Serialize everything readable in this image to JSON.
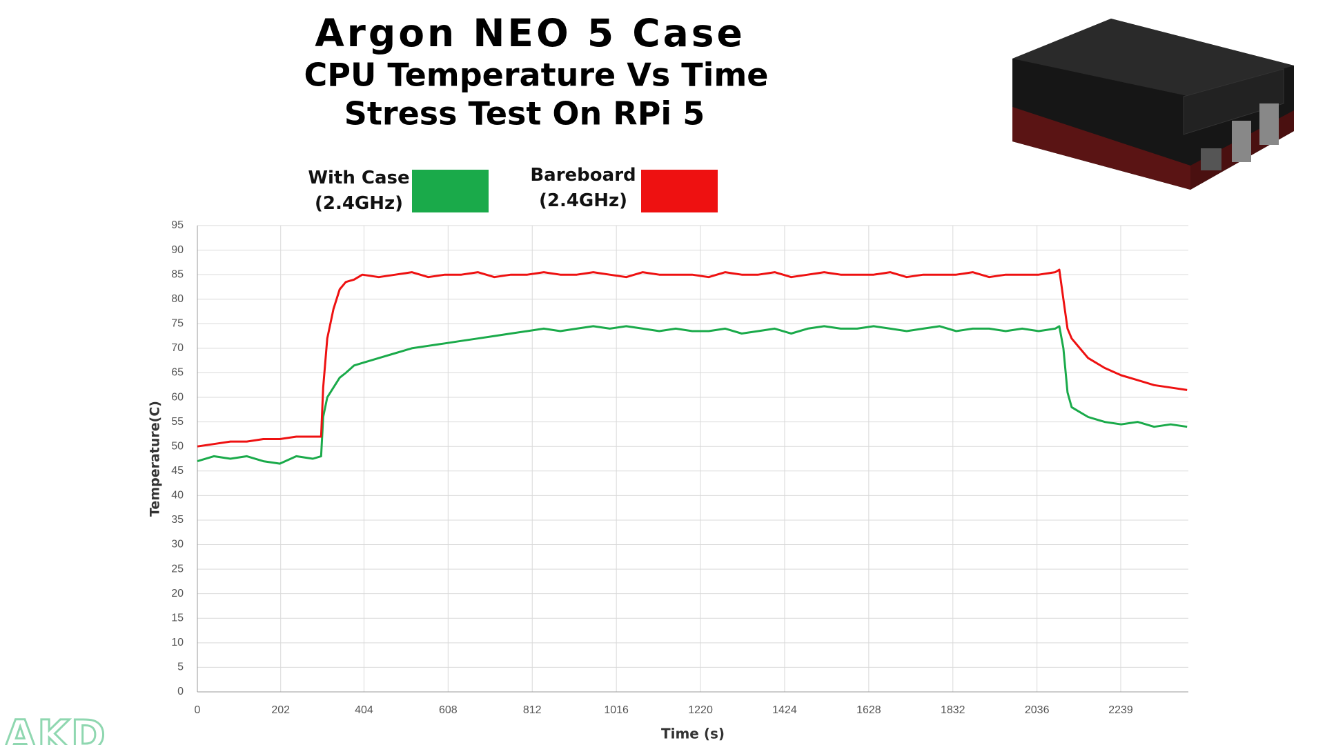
{
  "chart_data": {
    "type": "line",
    "title": "Argon NEO 5 Case",
    "subtitle": "CPU Temperature Vs Time",
    "subtitle2": "Stress Test On RPi 5",
    "x_label": "Time (s)",
    "y_label": "Temperature(C)",
    "watermark": "AKD",
    "x": [
      0,
      40,
      80,
      120,
      160,
      200,
      240,
      280,
      300,
      305,
      315,
      330,
      345,
      360,
      380,
      400,
      440,
      480,
      520,
      560,
      600,
      640,
      680,
      720,
      760,
      800,
      840,
      880,
      920,
      960,
      1000,
      1040,
      1080,
      1120,
      1160,
      1200,
      1240,
      1280,
      1320,
      1360,
      1400,
      1440,
      1480,
      1520,
      1560,
      1600,
      1640,
      1680,
      1720,
      1760,
      1800,
      1840,
      1880,
      1920,
      1960,
      2000,
      2040,
      2080,
      2090,
      2100,
      2110,
      2120,
      2140,
      2160,
      2180,
      2200,
      2240,
      2280,
      2320,
      2360,
      2400
    ],
    "series": [
      {
        "name": "With Case (2.4GHz)",
        "color": "#1aaa4a",
        "values": [
          47,
          48,
          47.5,
          48,
          47,
          46.5,
          48,
          47.5,
          48,
          56,
          60,
          62,
          64,
          65,
          66.5,
          67,
          68,
          69,
          70,
          70.5,
          71,
          71.5,
          72,
          72.5,
          73,
          73.5,
          74,
          73.5,
          74,
          74.5,
          74,
          74.5,
          74,
          73.5,
          74,
          73.5,
          73.5,
          74,
          73,
          73.5,
          74,
          73,
          74,
          74.5,
          74,
          74,
          74.5,
          74,
          73.5,
          74,
          74.5,
          73.5,
          74,
          74,
          73.5,
          74,
          73.5,
          74,
          74.5,
          70,
          61,
          58,
          57,
          56,
          55.5,
          55,
          54.5,
          55,
          54,
          54.5,
          54
        ]
      },
      {
        "name": "Bareboard (2.4GHz)",
        "color": "#ee1111",
        "values": [
          50,
          50.5,
          51,
          51,
          51.5,
          51.5,
          52,
          52,
          52,
          62,
          72,
          78,
          82,
          83.5,
          84,
          85,
          84.5,
          85,
          85.5,
          84.5,
          85,
          85,
          85.5,
          84.5,
          85,
          85,
          85.5,
          85,
          85,
          85.5,
          85,
          84.5,
          85.5,
          85,
          85,
          85,
          84.5,
          85.5,
          85,
          85,
          85.5,
          84.5,
          85,
          85.5,
          85,
          85,
          85,
          85.5,
          84.5,
          85,
          85,
          85,
          85.5,
          84.5,
          85,
          85,
          85,
          85.5,
          86,
          80,
          74,
          72,
          70,
          68,
          67,
          66,
          64.5,
          63.5,
          62.5,
          62,
          61.5
        ]
      }
    ],
    "xlim": [
      0,
      2403
    ],
    "xticks": [
      0,
      202,
      404,
      608,
      812,
      1016,
      1220,
      1424,
      1628,
      1832,
      2036,
      2239
    ],
    "ylim": [
      0,
      95
    ],
    "yticks": [
      0,
      5,
      10,
      15,
      20,
      25,
      30,
      35,
      40,
      45,
      50,
      55,
      60,
      65,
      70,
      75,
      80,
      85,
      90,
      95
    ],
    "grid": true
  }
}
